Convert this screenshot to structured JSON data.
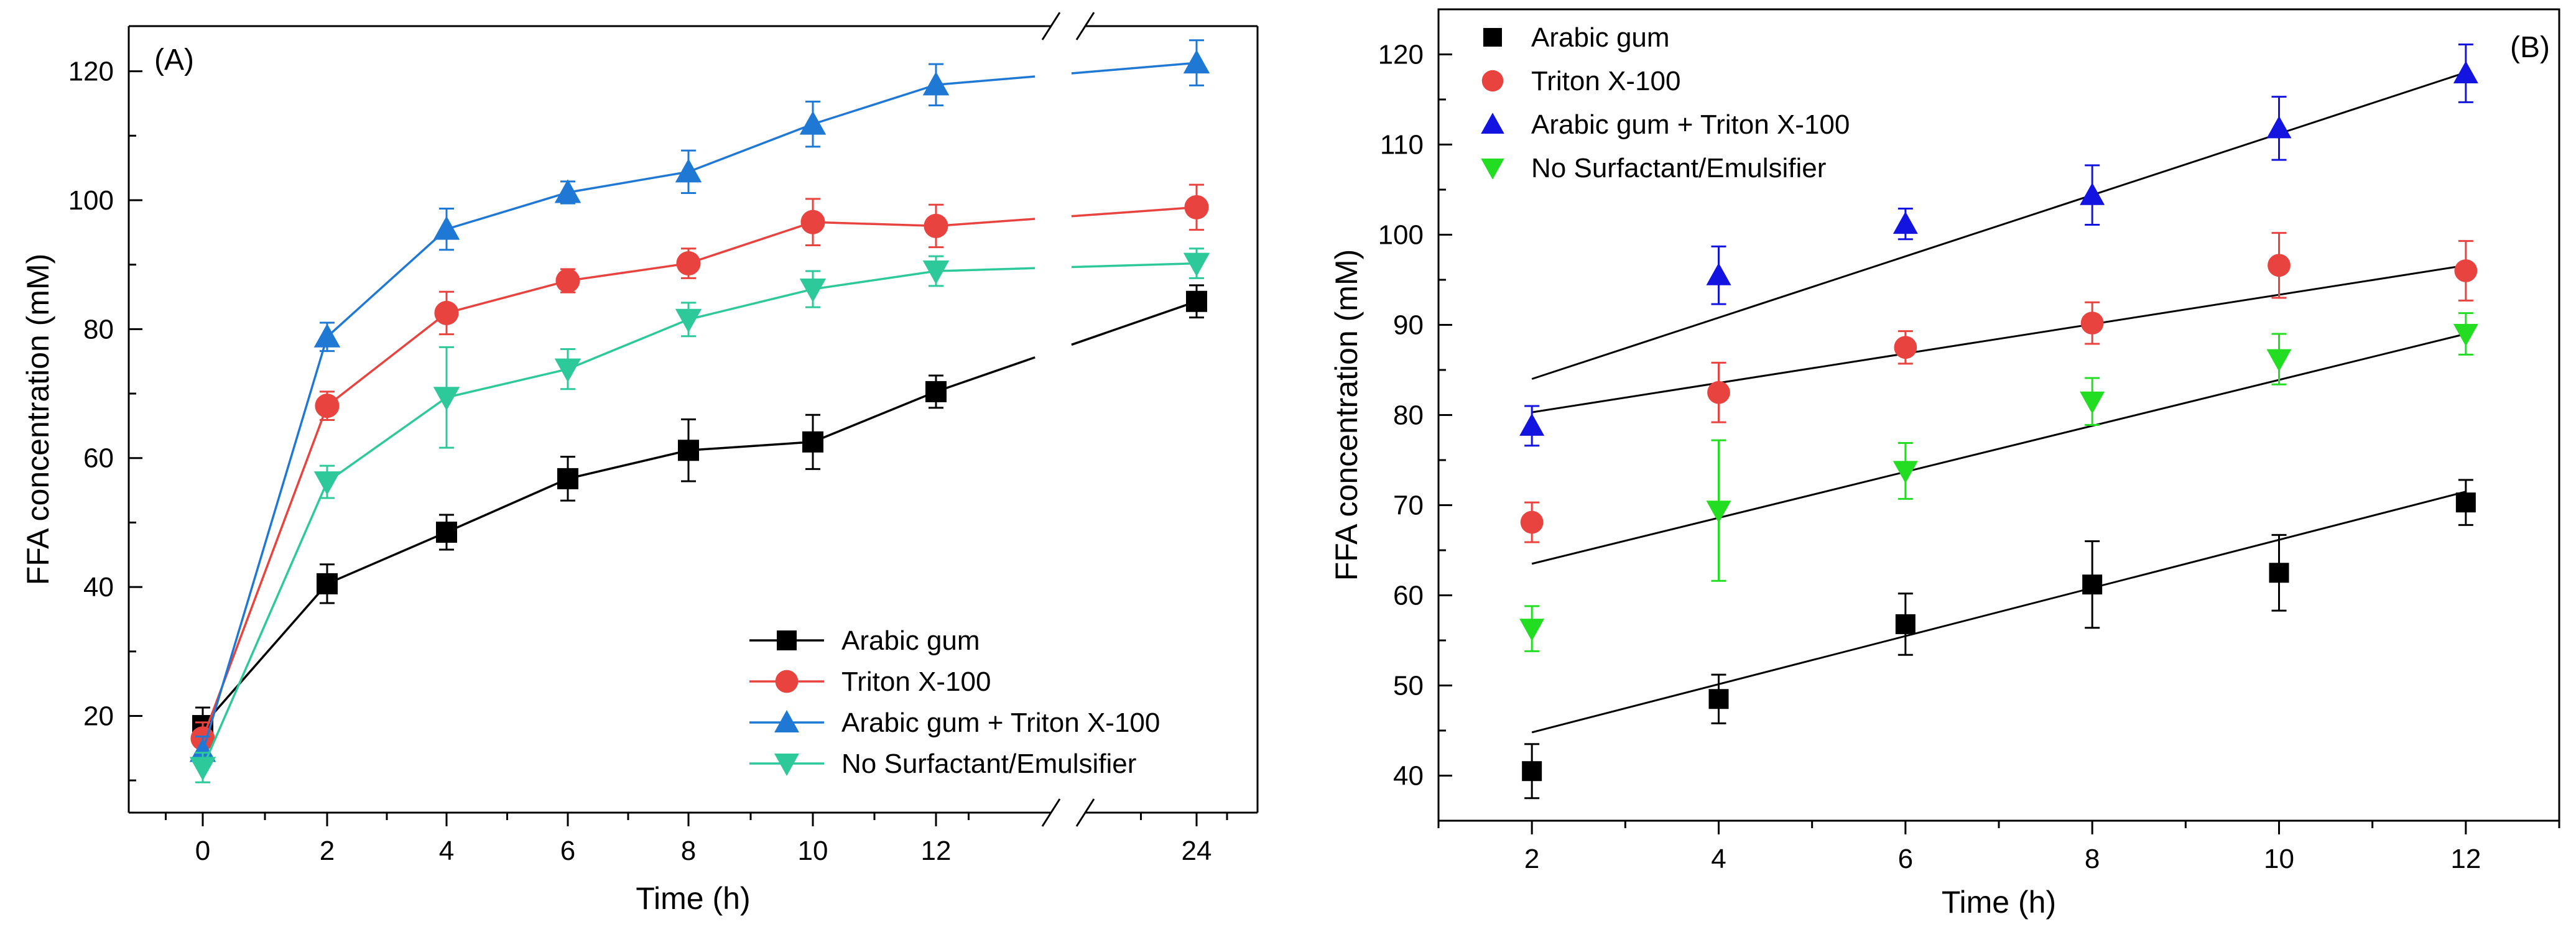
{
  "chart_data": [
    {
      "panel": "(A)",
      "type": "line",
      "xlabel": "Time (h)",
      "ylabel": "FFA concentration (mM)",
      "ylim": [
        5,
        127
      ],
      "yticks": [
        20,
        40,
        60,
        80,
        100,
        120
      ],
      "xticks": [
        "0",
        "2",
        "4",
        "6",
        "8",
        "10",
        "12",
        "24"
      ],
      "x": [
        0,
        2,
        4,
        6,
        8,
        10,
        12,
        24
      ],
      "axis_break": "between 12 and 24",
      "legend_position": "bottom-right",
      "series": [
        {
          "name": "Arabic gum",
          "color": "#000000",
          "marker": "square",
          "values": [
            18.5,
            40.5,
            48.5,
            56.8,
            61.2,
            62.5,
            70.3,
            84.3
          ],
          "errors": [
            2.8,
            3.0,
            2.7,
            3.4,
            4.8,
            4.2,
            2.5,
            2.5
          ]
        },
        {
          "name": "Triton X-100",
          "color": "#e8433f",
          "marker": "circle",
          "values": [
            16.5,
            68.1,
            82.5,
            87.5,
            90.2,
            96.6,
            96.0,
            98.9
          ],
          "errors": [
            2.5,
            2.2,
            3.3,
            1.8,
            2.3,
            3.6,
            3.3,
            3.5
          ]
        },
        {
          "name": "Arabic gum + Triton X-100",
          "color": "#1f78d4",
          "marker": "triangle-up",
          "values": [
            14.5,
            78.8,
            95.5,
            101.2,
            104.4,
            111.8,
            117.9,
            121.3
          ],
          "errors": [
            2.3,
            2.2,
            3.2,
            1.7,
            3.3,
            3.5,
            3.2,
            3.5
          ]
        },
        {
          "name": "No Surfactant/Emulsifier",
          "color": "#2ec99a",
          "marker": "triangle-down",
          "values": [
            12.0,
            56.3,
            69.4,
            73.8,
            81.5,
            86.2,
            89.0,
            90.2
          ],
          "errors": [
            2.3,
            2.5,
            7.8,
            3.1,
            2.6,
            2.8,
            2.3,
            2.3
          ]
        }
      ]
    },
    {
      "panel": "(B)",
      "type": "scatter",
      "xlabel": "Time (h)",
      "ylabel": "FFA concentration (mM)",
      "ylim": [
        35,
        125
      ],
      "xlim": [
        1,
        13
      ],
      "yticks": [
        40,
        50,
        60,
        70,
        80,
        90,
        100,
        110,
        120
      ],
      "xticks": [
        2,
        4,
        6,
        8,
        10,
        12
      ],
      "x": [
        2,
        4,
        6,
        8,
        10,
        12
      ],
      "legend_position": "top-left",
      "series": [
        {
          "name": "Arabic gum",
          "color": "#000000",
          "marker": "square",
          "values": [
            40.5,
            48.5,
            56.8,
            61.2,
            62.5,
            70.3
          ],
          "errors": [
            3.0,
            2.7,
            3.4,
            4.8,
            4.2,
            2.5
          ],
          "fit": [
            44.8,
            71.5
          ]
        },
        {
          "name": "Triton X-100",
          "color": "#e8433f",
          "marker": "circle",
          "values": [
            68.1,
            82.5,
            87.5,
            90.2,
            96.6,
            96.0
          ],
          "errors": [
            2.2,
            3.3,
            1.8,
            2.3,
            3.6,
            3.3
          ],
          "fit": [
            80.3,
            96.6
          ]
        },
        {
          "name": "Arabic gum + Triton X-100",
          "color": "#1414e0",
          "marker": "triangle-up",
          "values": [
            78.8,
            95.5,
            101.2,
            104.4,
            111.8,
            117.9
          ],
          "errors": [
            2.2,
            3.2,
            1.7,
            3.3,
            3.5,
            3.2
          ],
          "fit": [
            84.0,
            118.0
          ]
        },
        {
          "name": "No Surfactant/Emulsifier",
          "color": "#22dd22",
          "marker": "triangle-down",
          "values": [
            56.3,
            69.4,
            73.8,
            81.5,
            86.2,
            89.0
          ],
          "errors": [
            2.5,
            7.8,
            3.1,
            2.6,
            2.8,
            2.3
          ],
          "fit": [
            63.5,
            89.0
          ]
        }
      ]
    }
  ]
}
